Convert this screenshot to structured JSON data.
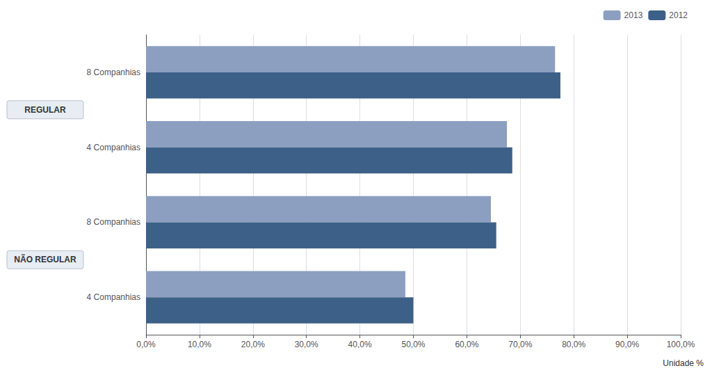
{
  "chart_data": {
    "type": "bar",
    "orientation": "horizontal",
    "categories": [
      "8 Companhias",
      "4 Companhias",
      "8 Companhias",
      "4 Companhias"
    ],
    "category_groups": [
      "REGULAR",
      "REGULAR",
      "NÃO REGULAR",
      "NÃO REGULAR"
    ],
    "series": [
      {
        "name": "2013",
        "color": "#8d9fc0",
        "values": [
          0.765,
          0.675,
          0.645,
          0.485
        ]
      },
      {
        "name": "2012",
        "color": "#3d6088",
        "values": [
          0.775,
          0.685,
          0.655,
          0.5
        ]
      }
    ],
    "xlabel": "Unidade %",
    "xlim": [
      0,
      1.0
    ],
    "xticks": [
      {
        "value": 0.0,
        "label": "0,0%"
      },
      {
        "value": 0.1,
        "label": "10,0%"
      },
      {
        "value": 0.2,
        "label": "20,0%"
      },
      {
        "value": 0.3,
        "label": "30,0%"
      },
      {
        "value": 0.4,
        "label": "40,0%"
      },
      {
        "value": 0.5,
        "label": "50,0%"
      },
      {
        "value": 0.6,
        "label": "60,0%"
      },
      {
        "value": 0.7,
        "label": "70,0%"
      },
      {
        "value": 0.8,
        "label": "80,0%"
      },
      {
        "value": 0.9,
        "label": "90,0%"
      },
      {
        "value": 1.0,
        "label": "100,0%"
      }
    ],
    "grid": true,
    "legend": "upper right"
  }
}
